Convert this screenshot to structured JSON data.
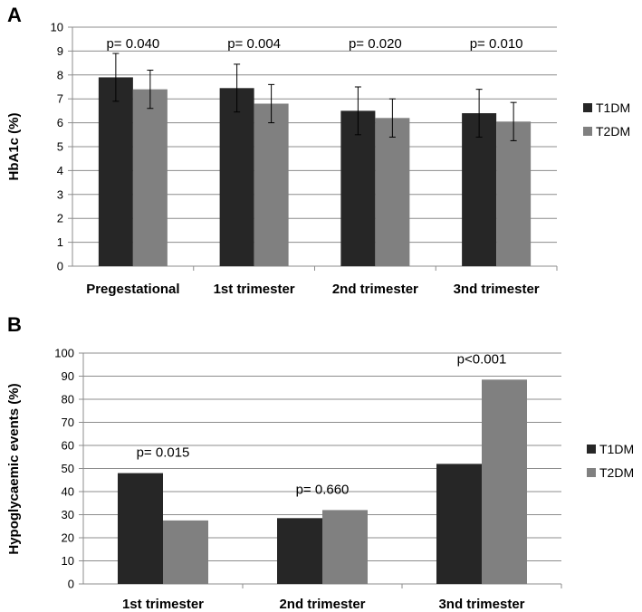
{
  "chart_data": [
    {
      "panel_label": "A",
      "type": "bar",
      "ylabel": "HbA1c (%)",
      "ylim": [
        0,
        10
      ],
      "yticks": [
        "0",
        "1",
        "2",
        "3",
        "4",
        "5",
        "6",
        "7",
        "8",
        "9",
        "10"
      ],
      "categories": [
        "Pregestational",
        "1st trimester",
        "2nd trimester",
        "3nd trimester"
      ],
      "series": [
        {
          "name": "T1DM",
          "color": "#262626",
          "values": [
            7.9,
            7.45,
            6.5,
            6.4
          ],
          "error": [
            1.0,
            1.0,
            1.0,
            1.0
          ]
        },
        {
          "name": "T2DM",
          "color": "#808080",
          "values": [
            7.4,
            6.8,
            6.2,
            6.05
          ],
          "error": [
            0.8,
            0.8,
            0.8,
            0.8
          ]
        }
      ],
      "annotations": [
        "p= 0.040",
        "p= 0.004",
        "p= 0.020",
        "p= 0.010"
      ],
      "legend": [
        "T1DM",
        "T2DM"
      ]
    },
    {
      "panel_label": "B",
      "type": "bar",
      "ylabel": "Hypoglycaemic events (%)",
      "ylim": [
        0,
        100
      ],
      "yticks": [
        "0",
        "10",
        "20",
        "30",
        "40",
        "50",
        "60",
        "70",
        "80",
        "90",
        "100"
      ],
      "categories": [
        "1st trimester",
        "2nd trimester",
        "3nd trimester"
      ],
      "series": [
        {
          "name": "T1DM",
          "color": "#262626",
          "values": [
            48,
            28.5,
            52
          ]
        },
        {
          "name": "T2DM",
          "color": "#808080",
          "values": [
            27.5,
            32,
            88.5
          ]
        }
      ],
      "annotations": [
        "p= 0.015",
        "p= 0.660",
        "p<0.001"
      ],
      "legend": [
        "T1DM",
        "T2DM"
      ]
    }
  ]
}
